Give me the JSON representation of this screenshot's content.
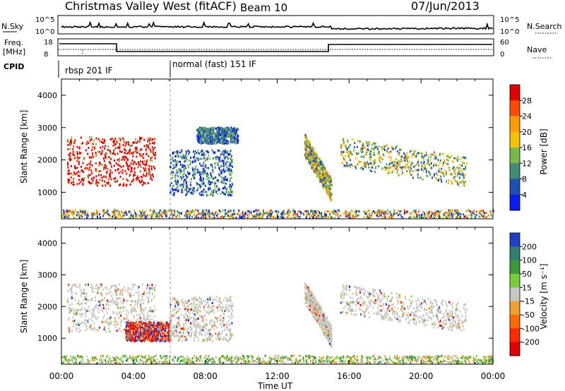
{
  "header": {
    "station": "Christmas Valley West (fitACF)",
    "beam": "Beam 10",
    "date": "07/Jun/2013"
  },
  "top_panels": {
    "nsky_label": "N.Sky",
    "nsky_ticks": [
      "10^5",
      "10^0"
    ],
    "nsearch_label": "N.Search",
    "nsearch_ticks": [
      "10^5",
      "10^0"
    ],
    "freq_label_1": "Freq.",
    "freq_label_2": "[MHz]",
    "freq_ticks": [
      "18",
      "8"
    ],
    "nave_label": "Nave",
    "nave_ticks": [
      "60",
      "0"
    ],
    "cpid_label": "CPID",
    "cpid_segments": [
      {
        "label": "rbsp 201 IF",
        "start_hour": 0
      },
      {
        "label": "normal (fast) 151 IF",
        "start_hour": 6
      }
    ]
  },
  "chart_data": [
    {
      "type": "heatmap",
      "panel": "power",
      "ylabel": "Slant Range [km]",
      "xlabel": "Time UT",
      "y_ticks": [
        "1000",
        "2000",
        "3000",
        "4000"
      ],
      "x_ticks": [
        "00:00",
        "04:00",
        "08:00",
        "12:00",
        "16:00",
        "20:00",
        "00:00"
      ],
      "xlim_hours": [
        0,
        24
      ],
      "ylim_km": [
        180,
        4500
      ],
      "colorbar_label": "Power [dB]",
      "colorbar_ticks": [
        "28",
        "24",
        "20",
        "16",
        "12",
        "8",
        "4"
      ],
      "colorbar_colors": [
        "#e00000",
        "#ff4a00",
        "#ff9a00",
        "#f6c100",
        "#7ab84a",
        "#3e8c78",
        "#1f4fb4",
        "#0a1cf0"
      ],
      "echo_regions": [
        {
          "t": [
            0.3,
            5.2
          ],
          "r": [
            1200,
            2700
          ],
          "class": "high"
        },
        {
          "t": [
            6.0,
            9.5
          ],
          "r": [
            900,
            2300
          ],
          "class": "low"
        },
        {
          "t": [
            7.5,
            9.8
          ],
          "r": [
            2500,
            3000
          ],
          "class": "low"
        },
        {
          "t": [
            13.5,
            15.0
          ],
          "r": [
            1000,
            2800
          ],
          "class": "mid"
        },
        {
          "t": [
            15.5,
            22.5
          ],
          "r": [
            1000,
            2600
          ],
          "class": "mid"
        },
        {
          "t": [
            0,
            24
          ],
          "r": [
            200,
            450
          ],
          "class": "ground"
        }
      ]
    },
    {
      "type": "heatmap",
      "panel": "velocity",
      "ylabel": "Slant Range [km]",
      "xlabel": "Time UT",
      "y_ticks": [
        "1000",
        "2000",
        "3000",
        "4000"
      ],
      "x_ticks": [
        "00:00",
        "04:00",
        "08:00",
        "12:00",
        "16:00",
        "20:00",
        "00:00"
      ],
      "xlim_hours": [
        0,
        24
      ],
      "ylim_km": [
        180,
        4500
      ],
      "colorbar_label": "Velocity [m s⁻¹]",
      "colorbar_ticks": [
        "200",
        "100",
        "50",
        "15",
        "-15",
        "-50",
        "-100",
        "-200"
      ],
      "colorbar_colors": [
        "#1f3fc4",
        "#2f7f6f",
        "#3a9a3a",
        "#7acd3a",
        "#c8c8c0",
        "#f0a030",
        "#ff6a00",
        "#ff2a00",
        "#e00000"
      ],
      "echo_regions": [
        {
          "t": [
            0.3,
            5.2
          ],
          "r": [
            1200,
            2700
          ],
          "class": "ground-scatter"
        },
        {
          "t": [
            3.5,
            6.0
          ],
          "r": [
            900,
            1500
          ],
          "class": "negative"
        },
        {
          "t": [
            6.0,
            9.5
          ],
          "r": [
            900,
            2300
          ],
          "class": "ground-scatter"
        },
        {
          "t": [
            13.5,
            15.0
          ],
          "r": [
            1000,
            2800
          ],
          "class": "ground-scatter"
        },
        {
          "t": [
            15.5,
            22.5
          ],
          "r": [
            1000,
            2600
          ],
          "class": "ground-scatter"
        },
        {
          "t": [
            0,
            24
          ],
          "r": [
            200,
            450
          ],
          "class": "positive-low"
        }
      ]
    }
  ]
}
